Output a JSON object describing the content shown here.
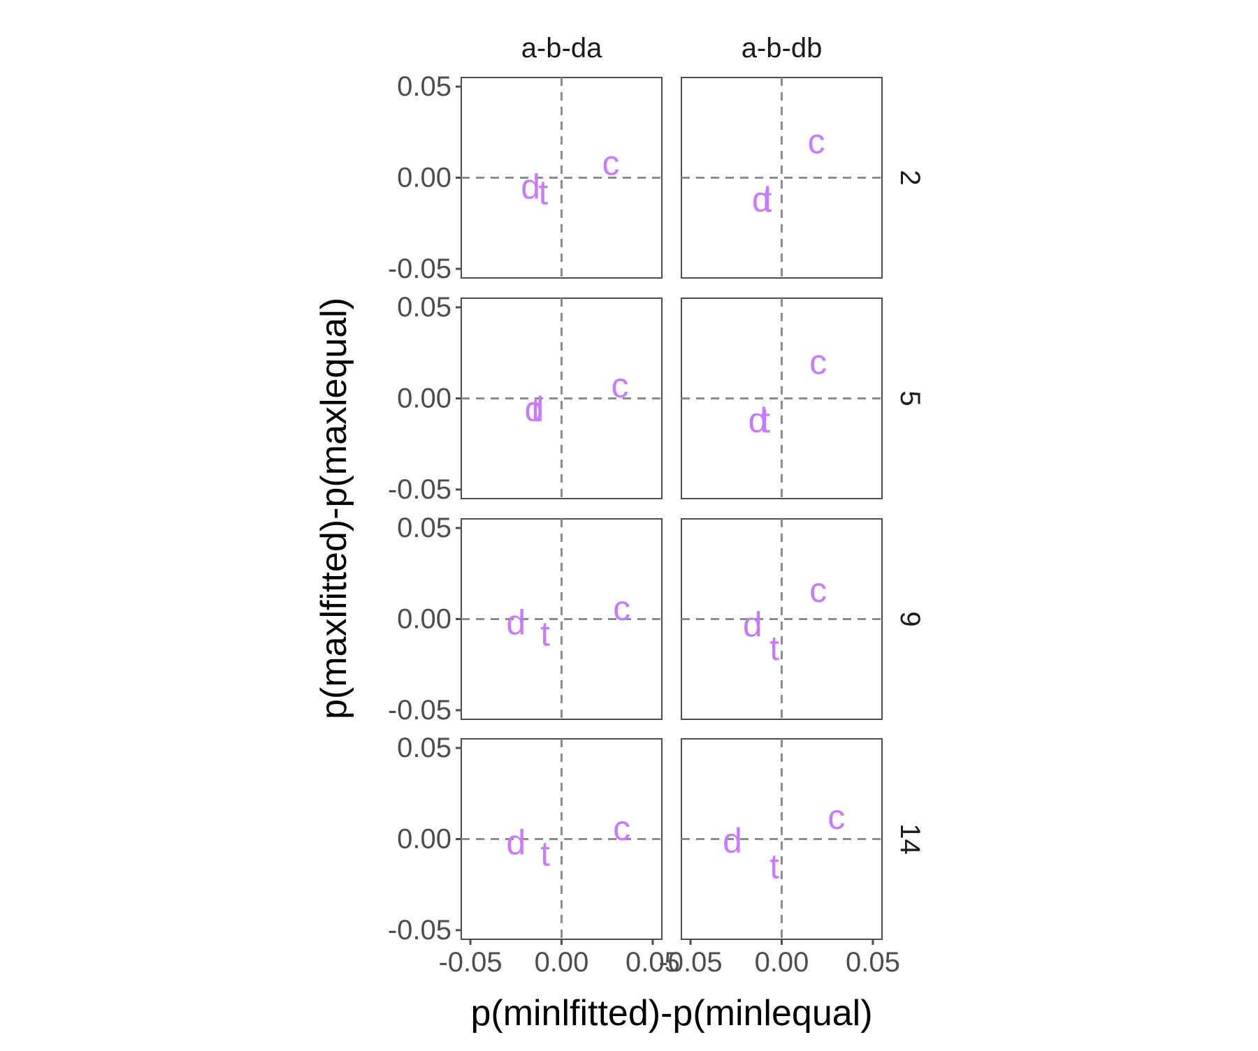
{
  "colors": {
    "points": "#c77cff",
    "panel_border": "#4d4d4d",
    "reference_line": "#8c8c8c",
    "tick": "#4d4d4d"
  },
  "chart_data": {
    "type": "scatter",
    "title": "",
    "xlabel": "p(minlfitted)-p(minlequal)",
    "ylabel": "p(maxlfitted)-p(maxlequal)",
    "xlim": [
      -0.055,
      0.055
    ],
    "ylim": [
      -0.055,
      0.055
    ],
    "x_ticks": [
      "-0.05",
      "0.00",
      "0.05"
    ],
    "y_ticks": [
      "-0.05",
      "0.00",
      "0.05"
    ],
    "x_tick_values": [
      -0.05,
      0,
      0.05
    ],
    "y_tick_values": [
      -0.05,
      0,
      0.05
    ],
    "reference_lines": {
      "x": 0,
      "y": 0,
      "style": "dashed"
    },
    "grid": false,
    "legend": "none",
    "column_facets": [
      "a-b-da",
      "a-b-db"
    ],
    "row_facets": [
      "2",
      "5",
      "9",
      "14"
    ],
    "panels": [
      {
        "col": "a-b-da",
        "row": "2",
        "points": [
          {
            "label": "c",
            "x": 0.027,
            "y": 0.008
          },
          {
            "label": "d",
            "x": -0.017,
            "y": -0.005
          },
          {
            "label": "t",
            "x": -0.01,
            "y": -0.008
          }
        ]
      },
      {
        "col": "a-b-db",
        "row": "2",
        "points": [
          {
            "label": "c",
            "x": 0.019,
            "y": 0.02
          },
          {
            "label": "d",
            "x": -0.011,
            "y": -0.012
          },
          {
            "label": "t",
            "x": -0.008,
            "y": -0.012
          }
        ]
      },
      {
        "col": "a-b-da",
        "row": "5",
        "points": [
          {
            "label": "c",
            "x": 0.032,
            "y": 0.007
          },
          {
            "label": "d",
            "x": -0.015,
            "y": -0.006
          },
          {
            "label": "t",
            "x": -0.014,
            "y": -0.006
          }
        ]
      },
      {
        "col": "a-b-db",
        "row": "5",
        "points": [
          {
            "label": "c",
            "x": 0.02,
            "y": 0.02
          },
          {
            "label": "d",
            "x": -0.013,
            "y": -0.012
          },
          {
            "label": "t",
            "x": -0.009,
            "y": -0.012
          }
        ]
      },
      {
        "col": "a-b-da",
        "row": "9",
        "points": [
          {
            "label": "c",
            "x": 0.033,
            "y": 0.006
          },
          {
            "label": "d",
            "x": -0.025,
            "y": -0.002
          },
          {
            "label": "t",
            "x": -0.009,
            "y": -0.008
          }
        ]
      },
      {
        "col": "a-b-db",
        "row": "9",
        "points": [
          {
            "label": "c",
            "x": 0.02,
            "y": 0.016
          },
          {
            "label": "d",
            "x": -0.016,
            "y": -0.003
          },
          {
            "label": "t",
            "x": -0.004,
            "y": -0.016
          }
        ]
      },
      {
        "col": "a-b-da",
        "row": "14",
        "points": [
          {
            "label": "c",
            "x": 0.033,
            "y": 0.006
          },
          {
            "label": "d",
            "x": -0.025,
            "y": -0.002
          },
          {
            "label": "t",
            "x": -0.009,
            "y": -0.008
          }
        ]
      },
      {
        "col": "a-b-db",
        "row": "14",
        "points": [
          {
            "label": "c",
            "x": 0.03,
            "y": 0.012
          },
          {
            "label": "d",
            "x": -0.027,
            "y": -0.001
          },
          {
            "label": "t",
            "x": -0.004,
            "y": -0.015
          }
        ]
      }
    ]
  }
}
